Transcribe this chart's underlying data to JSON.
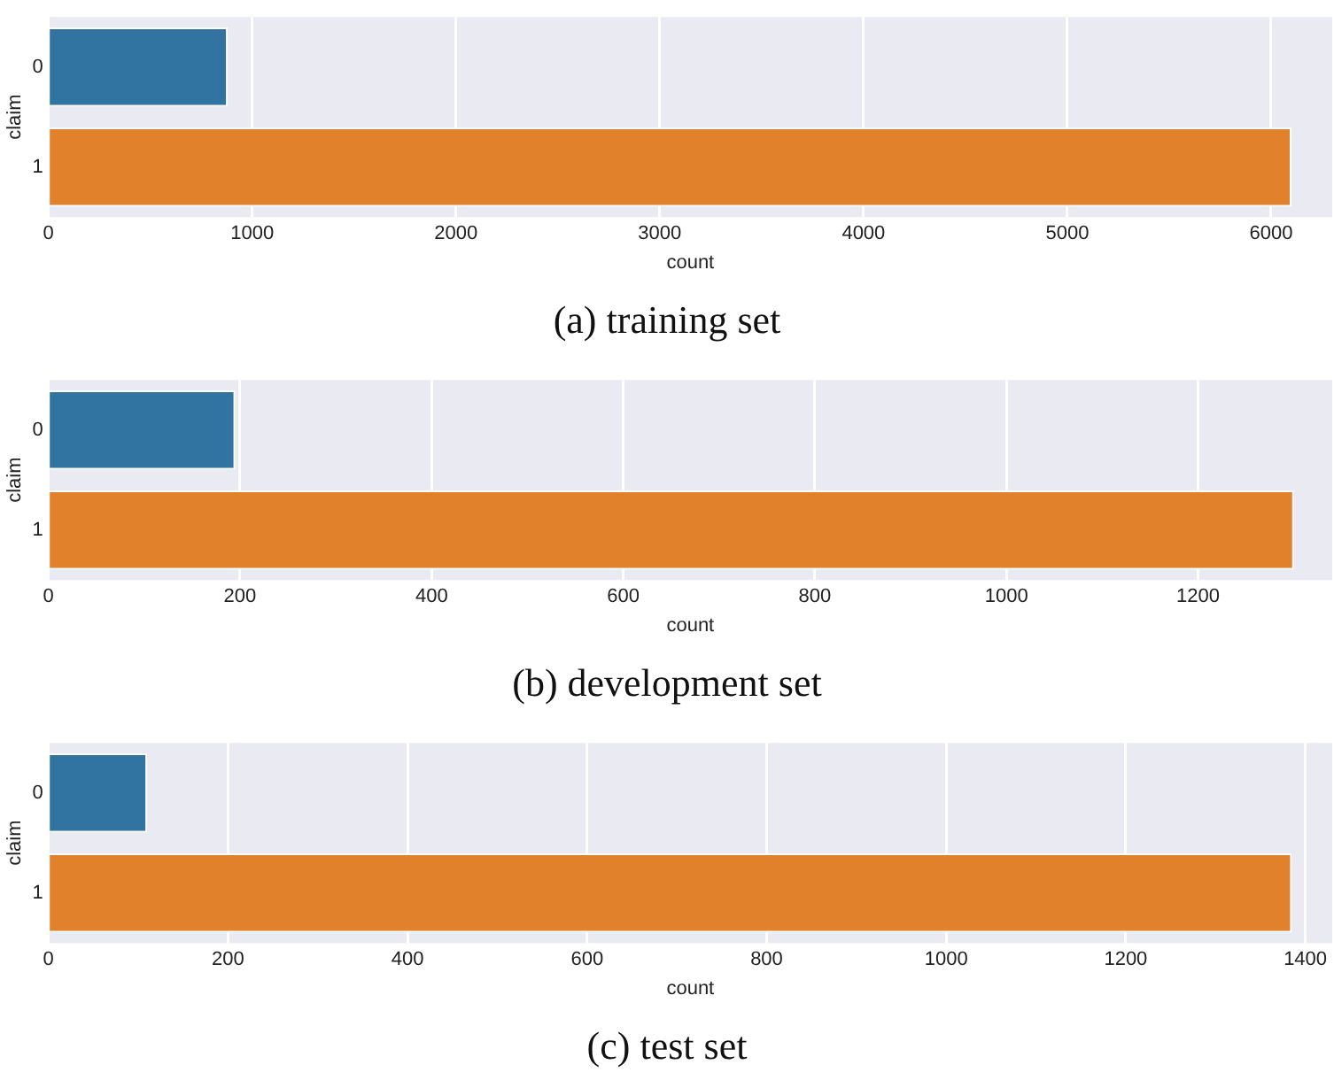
{
  "chart_data": [
    {
      "type": "bar",
      "orientation": "horizontal",
      "title": "(a) training set",
      "xlabel": "count",
      "ylabel": "claim",
      "categories": [
        "0",
        "1"
      ],
      "values": [
        880,
        6100
      ],
      "colors": [
        "#3274a1",
        "#e1812c"
      ],
      "xlim": [
        0,
        6300
      ],
      "xticks": [
        0,
        1000,
        2000,
        3000,
        4000,
        5000,
        6000
      ],
      "grid": "x"
    },
    {
      "type": "bar",
      "orientation": "horizontal",
      "title": "(b) development set",
      "xlabel": "count",
      "ylabel": "claim",
      "categories": [
        "0",
        "1"
      ],
      "values": [
        195,
        1300
      ],
      "colors": [
        "#3274a1",
        "#e1812c"
      ],
      "xlim": [
        0,
        1340
      ],
      "xticks": [
        0,
        200,
        400,
        600,
        800,
        1000,
        1200
      ],
      "grid": "x"
    },
    {
      "type": "bar",
      "orientation": "horizontal",
      "title": "(c) test set",
      "xlabel": "count",
      "ylabel": "claim",
      "categories": [
        "0",
        "1"
      ],
      "values": [
        110,
        1385
      ],
      "colors": [
        "#3274a1",
        "#e1812c"
      ],
      "xlim": [
        0,
        1430
      ],
      "xticks": [
        0,
        200,
        400,
        600,
        800,
        1000,
        1200,
        1400
      ],
      "grid": "x"
    }
  ]
}
